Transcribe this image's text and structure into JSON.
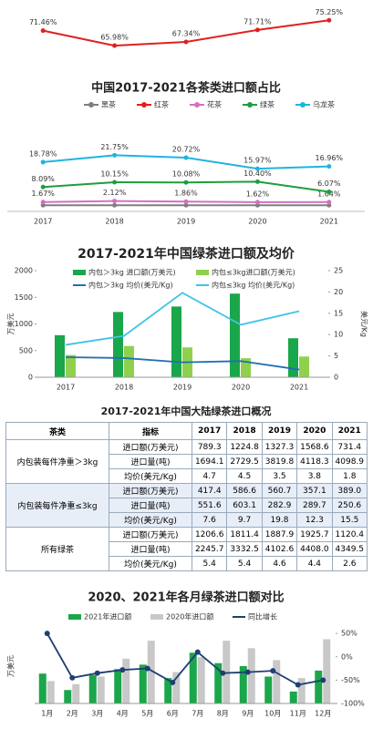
{
  "chart_data": [
    {
      "type": "line",
      "title": "中国2017-2021各茶类进口额占比",
      "categories": [
        "2017",
        "2018",
        "2019",
        "2020",
        "2021"
      ],
      "ylim": [
        0,
        25
      ],
      "y2lim": [
        60,
        80
      ],
      "series": [
        {
          "name": "黑茶",
          "color": "#7f7f7f",
          "values": [
            0.3,
            0.3,
            0.3,
            0.3,
            0.3
          ]
        },
        {
          "name": "红茶",
          "color": "#e02020",
          "axis": "y2",
          "values": [
            71.46,
            65.98,
            67.34,
            71.71,
            75.25
          ],
          "value_labels": [
            "71.46%",
            "65.98%",
            "67.34%",
            "71.71%",
            "75.25%"
          ]
        },
        {
          "name": "花茶",
          "color": "#d46fc4",
          "values": [
            1.67,
            2.12,
            1.86,
            1.62,
            1.64
          ],
          "value_labels": [
            "1.67%",
            "2.12%",
            "1.86%",
            "1.62%",
            "1.64%"
          ]
        },
        {
          "name": "绿茶",
          "color": "#1e9e3e",
          "values": [
            8.09,
            10.15,
            10.08,
            10.4,
            6.07
          ],
          "value_labels": [
            "8.09%",
            "10.15%",
            "10.08%",
            "10.40%",
            "6.07%"
          ]
        },
        {
          "name": "乌龙茶",
          "color": "#1fb4e0",
          "values": [
            18.78,
            21.75,
            20.72,
            15.97,
            16.96
          ],
          "value_labels": [
            "18.78%",
            "21.75%",
            "20.72%",
            "15.97%",
            "16.96%"
          ]
        }
      ]
    },
    {
      "type": "combo",
      "title": "2017-2021年中国绿茶进口额及均价",
      "categories": [
        "2017",
        "2018",
        "2019",
        "2020",
        "2021"
      ],
      "y_label": "万美元",
      "y2_label": "美元/Kg",
      "ylim": [
        0,
        2000
      ],
      "yticks": [
        0,
        500,
        1000,
        1500,
        2000
      ],
      "y2lim": [
        0,
        25
      ],
      "y2ticks": [
        0,
        5,
        10,
        15,
        20,
        25
      ],
      "series": [
        {
          "name": "内包＞3kg 进口额(万美元)",
          "type": "bar",
          "color": "#1aa64a",
          "values": [
            789.3,
            1224.8,
            1327.3,
            1568.6,
            731.4
          ]
        },
        {
          "name": "内包≤3kg进口额(万美元)",
          "type": "bar",
          "color": "#8fd14f",
          "values": [
            417.4,
            586.6,
            560.7,
            357.1,
            389.0
          ]
        },
        {
          "name": "内包＞3kg 均价(美元/Kg)",
          "type": "line",
          "axis": "y2",
          "color": "#1f6fb5",
          "values": [
            4.7,
            4.5,
            3.5,
            3.8,
            1.8
          ]
        },
        {
          "name": "内包≤3kg 均价(美元/Kg)",
          "type": "line",
          "axis": "y2",
          "color": "#3fc3e6",
          "values": [
            7.6,
            9.7,
            19.8,
            12.3,
            15.5
          ]
        }
      ]
    },
    {
      "type": "combo",
      "title": "2020、2021年各月绿茶进口额对比",
      "categories": [
        "1月",
        "2月",
        "3月",
        "4月",
        "5月",
        "6月",
        "7月",
        "8月",
        "9月",
        "10月",
        "11月",
        "12月"
      ],
      "y_label": "万美元",
      "ylim": [
        0,
        250
      ],
      "y2lim": [
        -100,
        60
      ],
      "y2ticks": [
        {
          "value": 50,
          "label": "50%"
        },
        {
          "value": 0,
          "label": "0%"
        },
        {
          "value": -50,
          "label": "-50%"
        },
        {
          "value": -100,
          "label": "-100%"
        }
      ],
      "series": [
        {
          "name": "2021年进口额",
          "type": "bar",
          "color": "#1aa64a",
          "values": [
            100,
            45,
            95,
            115,
            130,
            85,
            170,
            135,
            125,
            90,
            40,
            110
          ]
        },
        {
          "name": "2020年进口额",
          "type": "bar",
          "color": "#c8c8c8",
          "values": [
            75,
            65,
            90,
            150,
            210,
            105,
            155,
            210,
            185,
            145,
            85,
            215
          ]
        },
        {
          "name": "同比增长",
          "type": "line",
          "axis": "y2",
          "marker": true,
          "color": "#1f3f73",
          "values": [
            50,
            -45,
            -35,
            -28,
            -25,
            -55,
            10,
            -35,
            -33,
            -30,
            -60,
            -50
          ]
        }
      ]
    }
  ],
  "table": {
    "title": "2017-2021年中国大陆绿茶进口概况",
    "header": [
      "茶类",
      "指标",
      "2017",
      "2018",
      "2019",
      "2020",
      "2021"
    ],
    "groups": [
      {
        "name": "内包装每件净重＞3kg",
        "rows": [
          {
            "metric": "进口额(万美元)",
            "values": [
              "789.3",
              "1224.8",
              "1327.3",
              "1568.6",
              "731.4"
            ]
          },
          {
            "metric": "进口量(吨)",
            "values": [
              "1694.1",
              "2729.5",
              "3819.8",
              "4118.3",
              "4098.9"
            ]
          },
          {
            "metric": "均价(美元/Kg)",
            "values": [
              "4.7",
              "4.5",
              "3.5",
              "3.8",
              "1.8"
            ]
          }
        ]
      },
      {
        "name": "内包装每件净重≤3kg",
        "rows": [
          {
            "metric": "进口额(万美元)",
            "values": [
              "417.4",
              "586.6",
              "560.7",
              "357.1",
              "389.0"
            ]
          },
          {
            "metric": "进口量(吨)",
            "values": [
              "551.6",
              "603.1",
              "282.9",
              "289.7",
              "250.6"
            ]
          },
          {
            "metric": "均价(美元/Kg)",
            "values": [
              "7.6",
              "9.7",
              "19.8",
              "12.3",
              "15.5"
            ]
          }
        ]
      },
      {
        "name": "所有绿茶",
        "rows": [
          {
            "metric": "进口额(万美元)",
            "values": [
              "1206.6",
              "1811.4",
              "1887.9",
              "1925.7",
              "1120.4"
            ]
          },
          {
            "metric": "进口量(吨)",
            "values": [
              "2245.7",
              "3332.5",
              "4102.6",
              "4408.0",
              "4349.5"
            ]
          },
          {
            "metric": "均价(美元/Kg)",
            "values": [
              "5.4",
              "5.4",
              "4.6",
              "4.4",
              "2.6"
            ]
          }
        ]
      }
    ]
  }
}
